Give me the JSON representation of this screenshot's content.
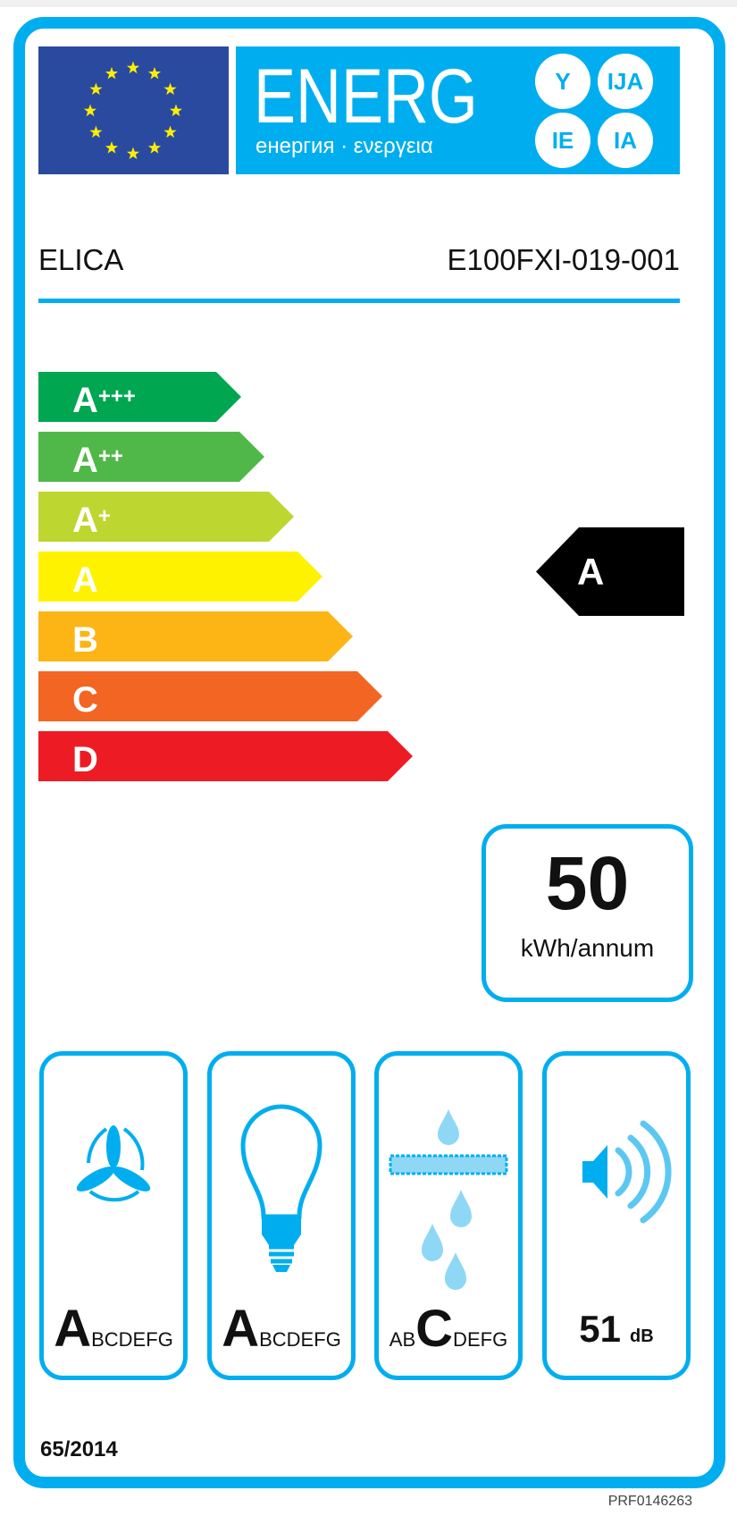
{
  "header": {
    "energy_word": "ENERG",
    "energy_sub": "енергия · ενεργεια",
    "suffixes": [
      "Y",
      "IJA",
      "IE",
      "IA"
    ]
  },
  "supplier": "ELICA",
  "model": "E100FXI-019-001",
  "classes": [
    {
      "label": "A",
      "sup": "+++",
      "color": "#00a650"
    },
    {
      "label": "A",
      "sup": "++",
      "color": "#50b848"
    },
    {
      "label": "A",
      "sup": "+",
      "color": "#bed630"
    },
    {
      "label": "A",
      "sup": "",
      "color": "#fff200"
    },
    {
      "label": "B",
      "sup": "",
      "color": "#fcb514"
    },
    {
      "label": "C",
      "sup": "",
      "color": "#f26522"
    },
    {
      "label": "D",
      "sup": "",
      "color": "#ed1c24"
    }
  ],
  "energy_class": "A",
  "consumption": {
    "value": "50",
    "unit": "kWh/annum"
  },
  "pictograms": [
    {
      "icon": "fan-icon",
      "scale": [
        "A",
        "B",
        "C",
        "D",
        "E",
        "F",
        "G"
      ],
      "selected": 0
    },
    {
      "icon": "light-bulb-icon",
      "scale": [
        "A",
        "B",
        "C",
        "D",
        "E",
        "F",
        "G"
      ],
      "selected": 0
    },
    {
      "icon": "grease-filter-icon",
      "scale": [
        "A",
        "B",
        "C",
        "D",
        "E",
        "F",
        "G"
      ],
      "selected": 2
    },
    {
      "icon": "speaker-icon",
      "value": "51",
      "unit": "dB"
    }
  ],
  "regulation": "65/2014",
  "code": "PRF0146263",
  "colors": {
    "accent": "#00aeef",
    "flag": "#2a4aa0",
    "star": "#ffed00"
  }
}
